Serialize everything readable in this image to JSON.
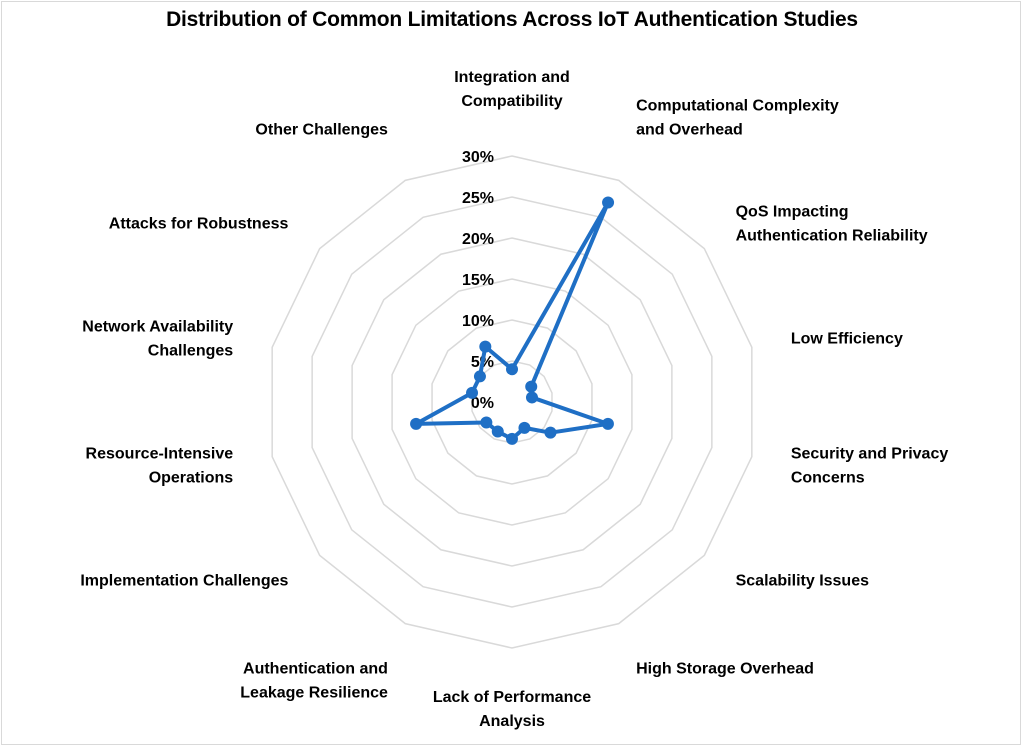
{
  "chart_data": {
    "type": "radar",
    "title": "Distribution of Common Limitations Across IoT Authentication Studies",
    "categories": [
      [
        "Integration and",
        "Compatibility"
      ],
      [
        "Computational Complexity",
        "and Overhead"
      ],
      [
        "QoS Impacting",
        "Authentication Reliability"
      ],
      [
        "Low Efficiency"
      ],
      [
        "Security and Privacy",
        "Concerns"
      ],
      [
        "Scalability Issues"
      ],
      [
        "High Storage Overhead"
      ],
      [
        "Lack of Performance",
        "Analysis"
      ],
      [
        "Authentication and",
        "Leakage Resilience"
      ],
      [
        "Implementation Challenges"
      ],
      [
        "Resource-Intensive",
        "Operations"
      ],
      [
        "Network Availability",
        "Challenges"
      ],
      [
        "Attacks for Robustness"
      ],
      [
        "Other Challenges"
      ]
    ],
    "series": [
      {
        "values": [
          4.0,
          27.0,
          3.0,
          2.5,
          12.0,
          6.0,
          3.5,
          4.5,
          4.0,
          4.0,
          12.0,
          5.0,
          5.0,
          7.5
        ],
        "color": "#1f6fc5"
      }
    ],
    "rlim": [
      0,
      30
    ],
    "ticks": [
      "0%",
      "5%",
      "10%",
      "15%",
      "20%",
      "25%",
      "30%"
    ],
    "grid": true,
    "legend": "none"
  }
}
